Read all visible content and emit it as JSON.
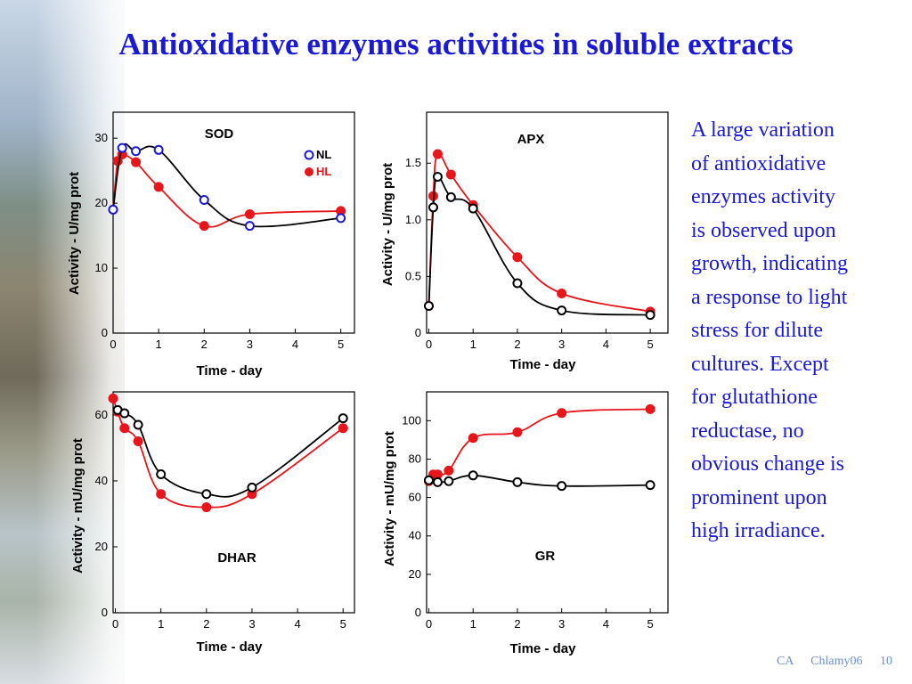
{
  "slide": {
    "title": "Antioxidative enzymes activities in soluble extracts",
    "body_lines": [
      "A large variation",
      "of antioxidative",
      "enzymes activity",
      "is observed upon",
      "growth, indicating",
      "a response to light",
      "stress for dilute",
      "cultures. Except",
      "for glutathione",
      "reductase, no",
      "obvious change is",
      "prominent upon",
      "high irradiance."
    ],
    "footer": {
      "left": "CA",
      "center": "Chlamy06",
      "page": "10"
    }
  },
  "colors": {
    "title": "#1a1ad6",
    "body": "#1a1ad6",
    "footer": "#6b8fd9",
    "nl": "#000000",
    "hl": "#e8151b",
    "nl_marker_sod": "#1a1ad6"
  },
  "chart_data": [
    {
      "type": "line",
      "title": "SOD",
      "xlabel": "Time - day",
      "ylabel": "Activity - U/mg prot",
      "xlim": [
        0,
        5.3
      ],
      "ylim": [
        0,
        34
      ],
      "xticks": [
        "0",
        "1",
        "2",
        "3",
        "4",
        "5"
      ],
      "yticks": [
        "0",
        "10",
        "20",
        "30"
      ],
      "legend": "top-right",
      "series": [
        {
          "name": "NL",
          "marker": "open",
          "x": [
            0,
            0.2,
            0.5,
            1,
            2,
            3,
            5
          ],
          "y": [
            19,
            28.5,
            28,
            28.2,
            20.5,
            16.5,
            17.7
          ]
        },
        {
          "name": "HL",
          "marker": "filled",
          "x": [
            0,
            0.1,
            0.2,
            0.5,
            1,
            2,
            3,
            5
          ],
          "y": [
            19,
            26.5,
            27.5,
            26.3,
            22.5,
            16.5,
            18.3,
            18.8
          ]
        }
      ]
    },
    {
      "type": "line",
      "title": "APX",
      "xlabel": "Time - day",
      "ylabel": "Activity - U/mg prot",
      "xlim": [
        -0.05,
        5.4
      ],
      "ylim": [
        0,
        1.95
      ],
      "xticks": [
        "0",
        "1",
        "2",
        "3",
        "4",
        "5"
      ],
      "yticks": [
        "0",
        "0.5",
        "1.0",
        "1.5"
      ],
      "series": [
        {
          "name": "NL",
          "marker": "open",
          "x": [
            0,
            0.1,
            0.2,
            0.5,
            1,
            2,
            3,
            5
          ],
          "y": [
            0.24,
            1.11,
            1.38,
            1.2,
            1.1,
            0.44,
            0.2,
            0.16
          ]
        },
        {
          "name": "HL",
          "marker": "filled",
          "x": [
            0,
            0.1,
            0.2,
            0.5,
            1,
            2,
            3,
            5
          ],
          "y": [
            0.24,
            1.21,
            1.58,
            1.4,
            1.13,
            0.67,
            0.35,
            0.19
          ]
        }
      ]
    },
    {
      "type": "line",
      "title": "DHAR",
      "xlabel": "Time - day",
      "ylabel": "Activity - mU/mg prot",
      "xlim": [
        -0.05,
        5.25
      ],
      "ylim": [
        0,
        67
      ],
      "xticks": [
        "0",
        "1",
        "2",
        "3",
        "4",
        "5"
      ],
      "yticks": [
        "0",
        "20",
        "40",
        "60"
      ],
      "series": [
        {
          "name": "NL",
          "marker": "open",
          "x": [
            0.05,
            0.2,
            0.5,
            1,
            2,
            3,
            5
          ],
          "y": [
            61.5,
            60.5,
            57,
            42,
            36,
            38,
            59
          ]
        },
        {
          "name": "HL",
          "marker": "filled",
          "x": [
            -0.05,
            0.05,
            0.2,
            0.5,
            1,
            2,
            3,
            5
          ],
          "y": [
            65,
            61,
            56,
            52,
            36,
            32,
            36,
            56
          ]
        }
      ]
    },
    {
      "type": "line",
      "title": "GR",
      "xlabel": "Time - day",
      "ylabel": "Activity - mU/mg prot",
      "xlim": [
        -0.05,
        5.4
      ],
      "ylim": [
        0,
        115
      ],
      "xticks": [
        "0",
        "1",
        "2",
        "3",
        "4",
        "5"
      ],
      "yticks": [
        "0",
        "20",
        "40",
        "60",
        "80",
        "100"
      ],
      "series": [
        {
          "name": "NL",
          "marker": "open",
          "x": [
            0,
            0.2,
            0.45,
            1,
            2,
            3,
            5
          ],
          "y": [
            69,
            68,
            68.5,
            71.5,
            68,
            66,
            66.5
          ]
        },
        {
          "name": "HL",
          "marker": "filled",
          "x": [
            0,
            0.1,
            0.2,
            0.45,
            1,
            2,
            3,
            5
          ],
          "y": [
            68.5,
            72,
            72,
            74,
            91,
            94,
            104,
            106
          ]
        }
      ]
    }
  ]
}
